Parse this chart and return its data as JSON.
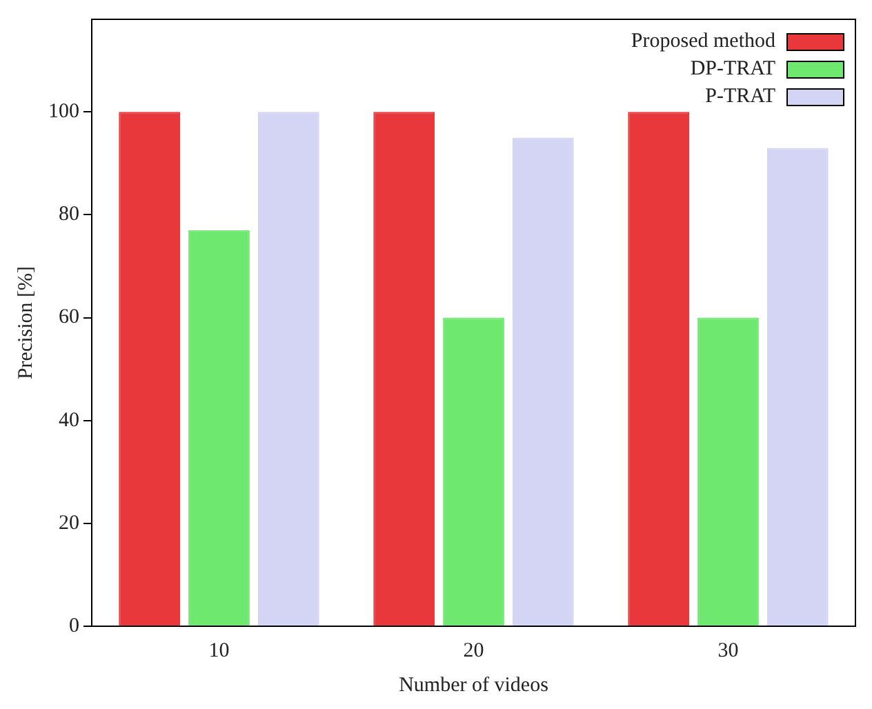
{
  "chart_data": {
    "type": "bar",
    "xlabel": "Number of videos",
    "ylabel": "Precision [%]",
    "categories": [
      "10",
      "20",
      "30"
    ],
    "series": [
      {
        "name": "Proposed method",
        "color": "#e8383c",
        "values": [
          100,
          100,
          100
        ]
      },
      {
        "name": "DP-TRAT",
        "color": "#6ee86e",
        "values": [
          77,
          60,
          60
        ]
      },
      {
        "name": "P-TRAT",
        "color": "#d4d4f4",
        "values": [
          100,
          95,
          93
        ]
      }
    ],
    "ylim": [
      0,
      118
    ],
    "yticks": [
      0,
      20,
      40,
      60,
      80,
      100
    ],
    "grid": false,
    "legend": "top right"
  }
}
